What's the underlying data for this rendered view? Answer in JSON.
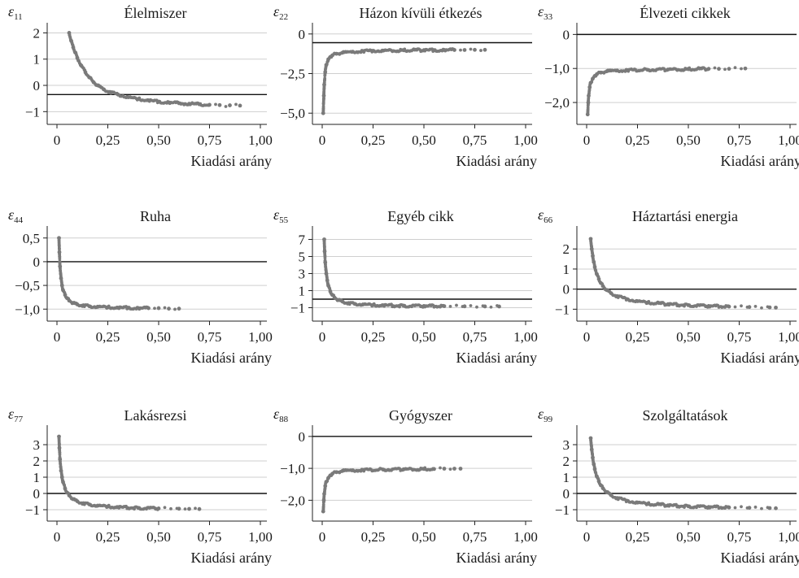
{
  "chart_data": [
    {
      "type": "scatter",
      "symbol": "ε",
      "subscript": "11",
      "title": "Élelmiszer",
      "xlabel": "Kiadási arány",
      "xlim": [
        0,
        1.0
      ],
      "xticks": [
        0,
        0.25,
        0.5,
        0.75,
        1.0
      ],
      "xtick_labels": [
        "0",
        "0,25",
        "0,50",
        "0,75",
        "1,00"
      ],
      "ylim": [
        -1.3,
        2.2
      ],
      "yticks": [
        -1,
        0,
        1,
        2
      ],
      "ytick_labels": [
        "−1",
        "0",
        "1",
        "2"
      ],
      "hline": -0.35,
      "x": [
        0.06,
        0.07,
        0.08,
        0.09,
        0.1,
        0.12,
        0.14,
        0.16,
        0.18,
        0.2,
        0.23,
        0.26,
        0.3,
        0.35,
        0.4,
        0.45,
        0.5,
        0.55,
        0.6,
        0.65,
        0.7,
        0.75,
        0.8,
        0.85,
        0.9
      ],
      "y": [
        2.0,
        1.7,
        1.45,
        1.25,
        1.05,
        0.75,
        0.5,
        0.3,
        0.12,
        0.0,
        -0.15,
        -0.25,
        -0.35,
        -0.45,
        -0.52,
        -0.57,
        -0.62,
        -0.65,
        -0.68,
        -0.7,
        -0.72,
        -0.74,
        -0.75,
        -0.76,
        -0.77
      ]
    },
    {
      "type": "scatter",
      "symbol": "ε",
      "subscript": "22",
      "title": "Házon kívüli étkezés",
      "xlabel": "Kiadási arány",
      "xlim": [
        0,
        1.0
      ],
      "xticks": [
        0,
        0.25,
        0.5,
        0.75,
        1.0
      ],
      "xtick_labels": [
        "0",
        "0,25",
        "0,50",
        "0,75",
        "1,00"
      ],
      "ylim": [
        -5.4,
        0.4
      ],
      "yticks": [
        -5,
        -2.5,
        0
      ],
      "ytick_labels": [
        "−5,0",
        "−2,5",
        "0"
      ],
      "hline": -0.55,
      "x": [
        0.005,
        0.008,
        0.01,
        0.015,
        0.02,
        0.03,
        0.04,
        0.05,
        0.07,
        0.1,
        0.15,
        0.2,
        0.25,
        0.3,
        0.4,
        0.5,
        0.55,
        0.6,
        0.65,
        0.7,
        0.75,
        0.8
      ],
      "y": [
        -5.0,
        -3.9,
        -3.2,
        -2.4,
        -1.95,
        -1.6,
        -1.45,
        -1.35,
        -1.25,
        -1.18,
        -1.12,
        -1.08,
        -1.06,
        -1.05,
        -1.03,
        -1.02,
        -1.02,
        -1.01,
        -1.01,
        -1.01,
        -1.0,
        -1.0
      ]
    },
    {
      "type": "scatter",
      "symbol": "ε",
      "subscript": "33",
      "title": "Élvezeti cikkek",
      "xlabel": "Kiadási arány",
      "xlim": [
        0,
        1.0
      ],
      "xticks": [
        0,
        0.25,
        0.5,
        0.75,
        1.0
      ],
      "xtick_labels": [
        "0",
        "0,25",
        "0,50",
        "0,75",
        "1,00"
      ],
      "ylim": [
        -2.5,
        0.2
      ],
      "yticks": [
        -2,
        -1,
        0
      ],
      "ytick_labels": [
        "−2,0",
        "−1,0",
        "0"
      ],
      "hline": 0,
      "x": [
        0.005,
        0.008,
        0.01,
        0.015,
        0.02,
        0.03,
        0.04,
        0.05,
        0.07,
        0.1,
        0.15,
        0.2,
        0.3,
        0.4,
        0.5,
        0.6,
        0.65,
        0.7,
        0.78
      ],
      "y": [
        -2.35,
        -2.0,
        -1.8,
        -1.55,
        -1.42,
        -1.3,
        -1.22,
        -1.17,
        -1.12,
        -1.08,
        -1.06,
        -1.05,
        -1.04,
        -1.03,
        -1.02,
        -1.01,
        -1.01,
        -1.01,
        -1.0
      ]
    },
    {
      "type": "scatter",
      "symbol": "ε",
      "subscript": "44",
      "title": "Ruha",
      "xlabel": "Kiadási arány",
      "xlim": [
        0,
        1.0
      ],
      "xticks": [
        0,
        0.25,
        0.5,
        0.75,
        1.0
      ],
      "xtick_labels": [
        "0",
        "0,25",
        "0,50",
        "0,75",
        "1,00"
      ],
      "ylim": [
        -1.15,
        0.65
      ],
      "yticks": [
        -1,
        -0.5,
        0,
        0.5
      ],
      "ytick_labels": [
        "−1,0",
        "−0,5",
        "0",
        "0,5"
      ],
      "hline": 0,
      "x": [
        0.01,
        0.012,
        0.015,
        0.02,
        0.025,
        0.03,
        0.04,
        0.05,
        0.06,
        0.08,
        0.1,
        0.13,
        0.16,
        0.2,
        0.25,
        0.3,
        0.35,
        0.4,
        0.45,
        0.5,
        0.55,
        0.6
      ],
      "y": [
        0.5,
        0.2,
        -0.1,
        -0.35,
        -0.5,
        -0.6,
        -0.7,
        -0.77,
        -0.82,
        -0.87,
        -0.9,
        -0.92,
        -0.94,
        -0.95,
        -0.96,
        -0.97,
        -0.97,
        -0.98,
        -0.98,
        -0.98,
        -0.99,
        -0.99
      ]
    },
    {
      "type": "scatter",
      "symbol": "ε",
      "subscript": "55",
      "title": "Egyéb cikk",
      "xlabel": "Kiadási arány",
      "xlim": [
        0,
        1.0
      ],
      "xticks": [
        0,
        0.25,
        0.5,
        0.75,
        1.0
      ],
      "xtick_labels": [
        "0",
        "0,25",
        "0,50",
        "0,75",
        "1,00"
      ],
      "ylim": [
        -2.0,
        8.0
      ],
      "yticks": [
        -1,
        1,
        3,
        5,
        7
      ],
      "ytick_labels": [
        "−1",
        "1",
        "3",
        "5",
        "7"
      ],
      "hline": 0,
      "x": [
        0.01,
        0.012,
        0.015,
        0.02,
        0.025,
        0.03,
        0.04,
        0.05,
        0.06,
        0.08,
        0.1,
        0.13,
        0.16,
        0.2,
        0.25,
        0.3,
        0.4,
        0.5,
        0.6,
        0.7,
        0.8,
        0.87
      ],
      "y": [
        7.0,
        5.6,
        4.3,
        3.0,
        2.2,
        1.6,
        0.9,
        0.5,
        0.2,
        -0.1,
        -0.28,
        -0.45,
        -0.55,
        -0.62,
        -0.68,
        -0.72,
        -0.77,
        -0.8,
        -0.82,
        -0.84,
        -0.85,
        -0.86
      ]
    },
    {
      "type": "scatter",
      "symbol": "ε",
      "subscript": "66",
      "title": "Háztartási energia",
      "xlabel": "Kiadási arány",
      "xlim": [
        0,
        1.0
      ],
      "xticks": [
        0,
        0.25,
        0.5,
        0.75,
        1.0
      ],
      "xtick_labels": [
        "0",
        "0,25",
        "0,50",
        "0,75",
        "1,00"
      ],
      "ylim": [
        -1.35,
        2.9
      ],
      "yticks": [
        -1,
        0,
        1,
        2
      ],
      "ytick_labels": [
        "−1",
        "0",
        "1",
        "2"
      ],
      "hline": 0,
      "x": [
        0.02,
        0.025,
        0.03,
        0.035,
        0.04,
        0.05,
        0.06,
        0.07,
        0.08,
        0.1,
        0.12,
        0.15,
        0.2,
        0.25,
        0.3,
        0.4,
        0.5,
        0.6,
        0.7,
        0.8,
        0.9,
        0.93
      ],
      "y": [
        2.5,
        2.0,
        1.65,
        1.35,
        1.1,
        0.75,
        0.5,
        0.3,
        0.15,
        -0.05,
        -0.2,
        -0.35,
        -0.5,
        -0.6,
        -0.67,
        -0.75,
        -0.8,
        -0.84,
        -0.87,
        -0.89,
        -0.91,
        -0.92
      ]
    },
    {
      "type": "scatter",
      "symbol": "ε",
      "subscript": "77",
      "title": "Lakásrezsi",
      "xlabel": "Kiadási arány",
      "xlim": [
        0,
        1.0
      ],
      "xticks": [
        0,
        0.25,
        0.5,
        0.75,
        1.0
      ],
      "xtick_labels": [
        "0",
        "0,25",
        "0,50",
        "0,75",
        "1,00"
      ],
      "ylim": [
        -1.4,
        3.9
      ],
      "yticks": [
        -1,
        0,
        1,
        2,
        3
      ],
      "ytick_labels": [
        "−1",
        "0",
        "1",
        "2",
        "3"
      ],
      "hline": 0,
      "x": [
        0.01,
        0.012,
        0.015,
        0.02,
        0.025,
        0.03,
        0.04,
        0.05,
        0.06,
        0.08,
        0.1,
        0.13,
        0.16,
        0.2,
        0.25,
        0.3,
        0.4,
        0.5,
        0.6,
        0.65,
        0.7
      ],
      "y": [
        3.5,
        2.8,
        2.1,
        1.4,
        1.0,
        0.7,
        0.3,
        0.05,
        -0.12,
        -0.35,
        -0.48,
        -0.6,
        -0.68,
        -0.75,
        -0.8,
        -0.84,
        -0.89,
        -0.92,
        -0.94,
        -0.95,
        -0.96
      ]
    },
    {
      "type": "scatter",
      "symbol": "ε",
      "subscript": "88",
      "title": "Gyógyszer",
      "xlabel": "Kiadási arány",
      "xlim": [
        0,
        1.0
      ],
      "xticks": [
        0,
        0.25,
        0.5,
        0.75,
        1.0
      ],
      "xtick_labels": [
        "0",
        "0,25",
        "0,50",
        "0,75",
        "1,00"
      ],
      "ylim": [
        -2.5,
        0.2
      ],
      "yticks": [
        -2,
        -1,
        0
      ],
      "ytick_labels": [
        "−2,0",
        "−1,0",
        "0"
      ],
      "hline": 0,
      "x": [
        0.005,
        0.008,
        0.01,
        0.015,
        0.02,
        0.03,
        0.04,
        0.05,
        0.07,
        0.1,
        0.15,
        0.2,
        0.3,
        0.4,
        0.5,
        0.55,
        0.6,
        0.65,
        0.68
      ],
      "y": [
        -2.35,
        -2.0,
        -1.8,
        -1.55,
        -1.42,
        -1.3,
        -1.22,
        -1.17,
        -1.12,
        -1.08,
        -1.06,
        -1.05,
        -1.04,
        -1.03,
        -1.02,
        -1.02,
        -1.01,
        -1.01,
        -1.01
      ]
    },
    {
      "type": "scatter",
      "symbol": "ε",
      "subscript": "99",
      "title": "Szolgáltatások",
      "xlabel": "Kiadási arány",
      "xlim": [
        0,
        1.0
      ],
      "xticks": [
        0,
        0.25,
        0.5,
        0.75,
        1.0
      ],
      "xtick_labels": [
        "0",
        "0,25",
        "0,50",
        "0,75",
        "1,00"
      ],
      "ylim": [
        -1.4,
        3.9
      ],
      "yticks": [
        -1,
        0,
        1,
        2,
        3
      ],
      "ytick_labels": [
        "−1",
        "0",
        "1",
        "2",
        "3"
      ],
      "hline": 0,
      "x": [
        0.02,
        0.025,
        0.03,
        0.035,
        0.04,
        0.05,
        0.06,
        0.07,
        0.08,
        0.1,
        0.12,
        0.15,
        0.2,
        0.25,
        0.3,
        0.4,
        0.5,
        0.6,
        0.7,
        0.8,
        0.9,
        0.93
      ],
      "y": [
        3.4,
        2.7,
        2.2,
        1.8,
        1.5,
        1.05,
        0.75,
        0.5,
        0.32,
        0.08,
        -0.1,
        -0.28,
        -0.45,
        -0.56,
        -0.64,
        -0.73,
        -0.79,
        -0.83,
        -0.86,
        -0.88,
        -0.9,
        -0.91
      ]
    }
  ],
  "colors": {
    "points": "#7a7a7a",
    "refline": "#111111",
    "grid": "#cfcfcf",
    "text": "#1a1a1a"
  }
}
